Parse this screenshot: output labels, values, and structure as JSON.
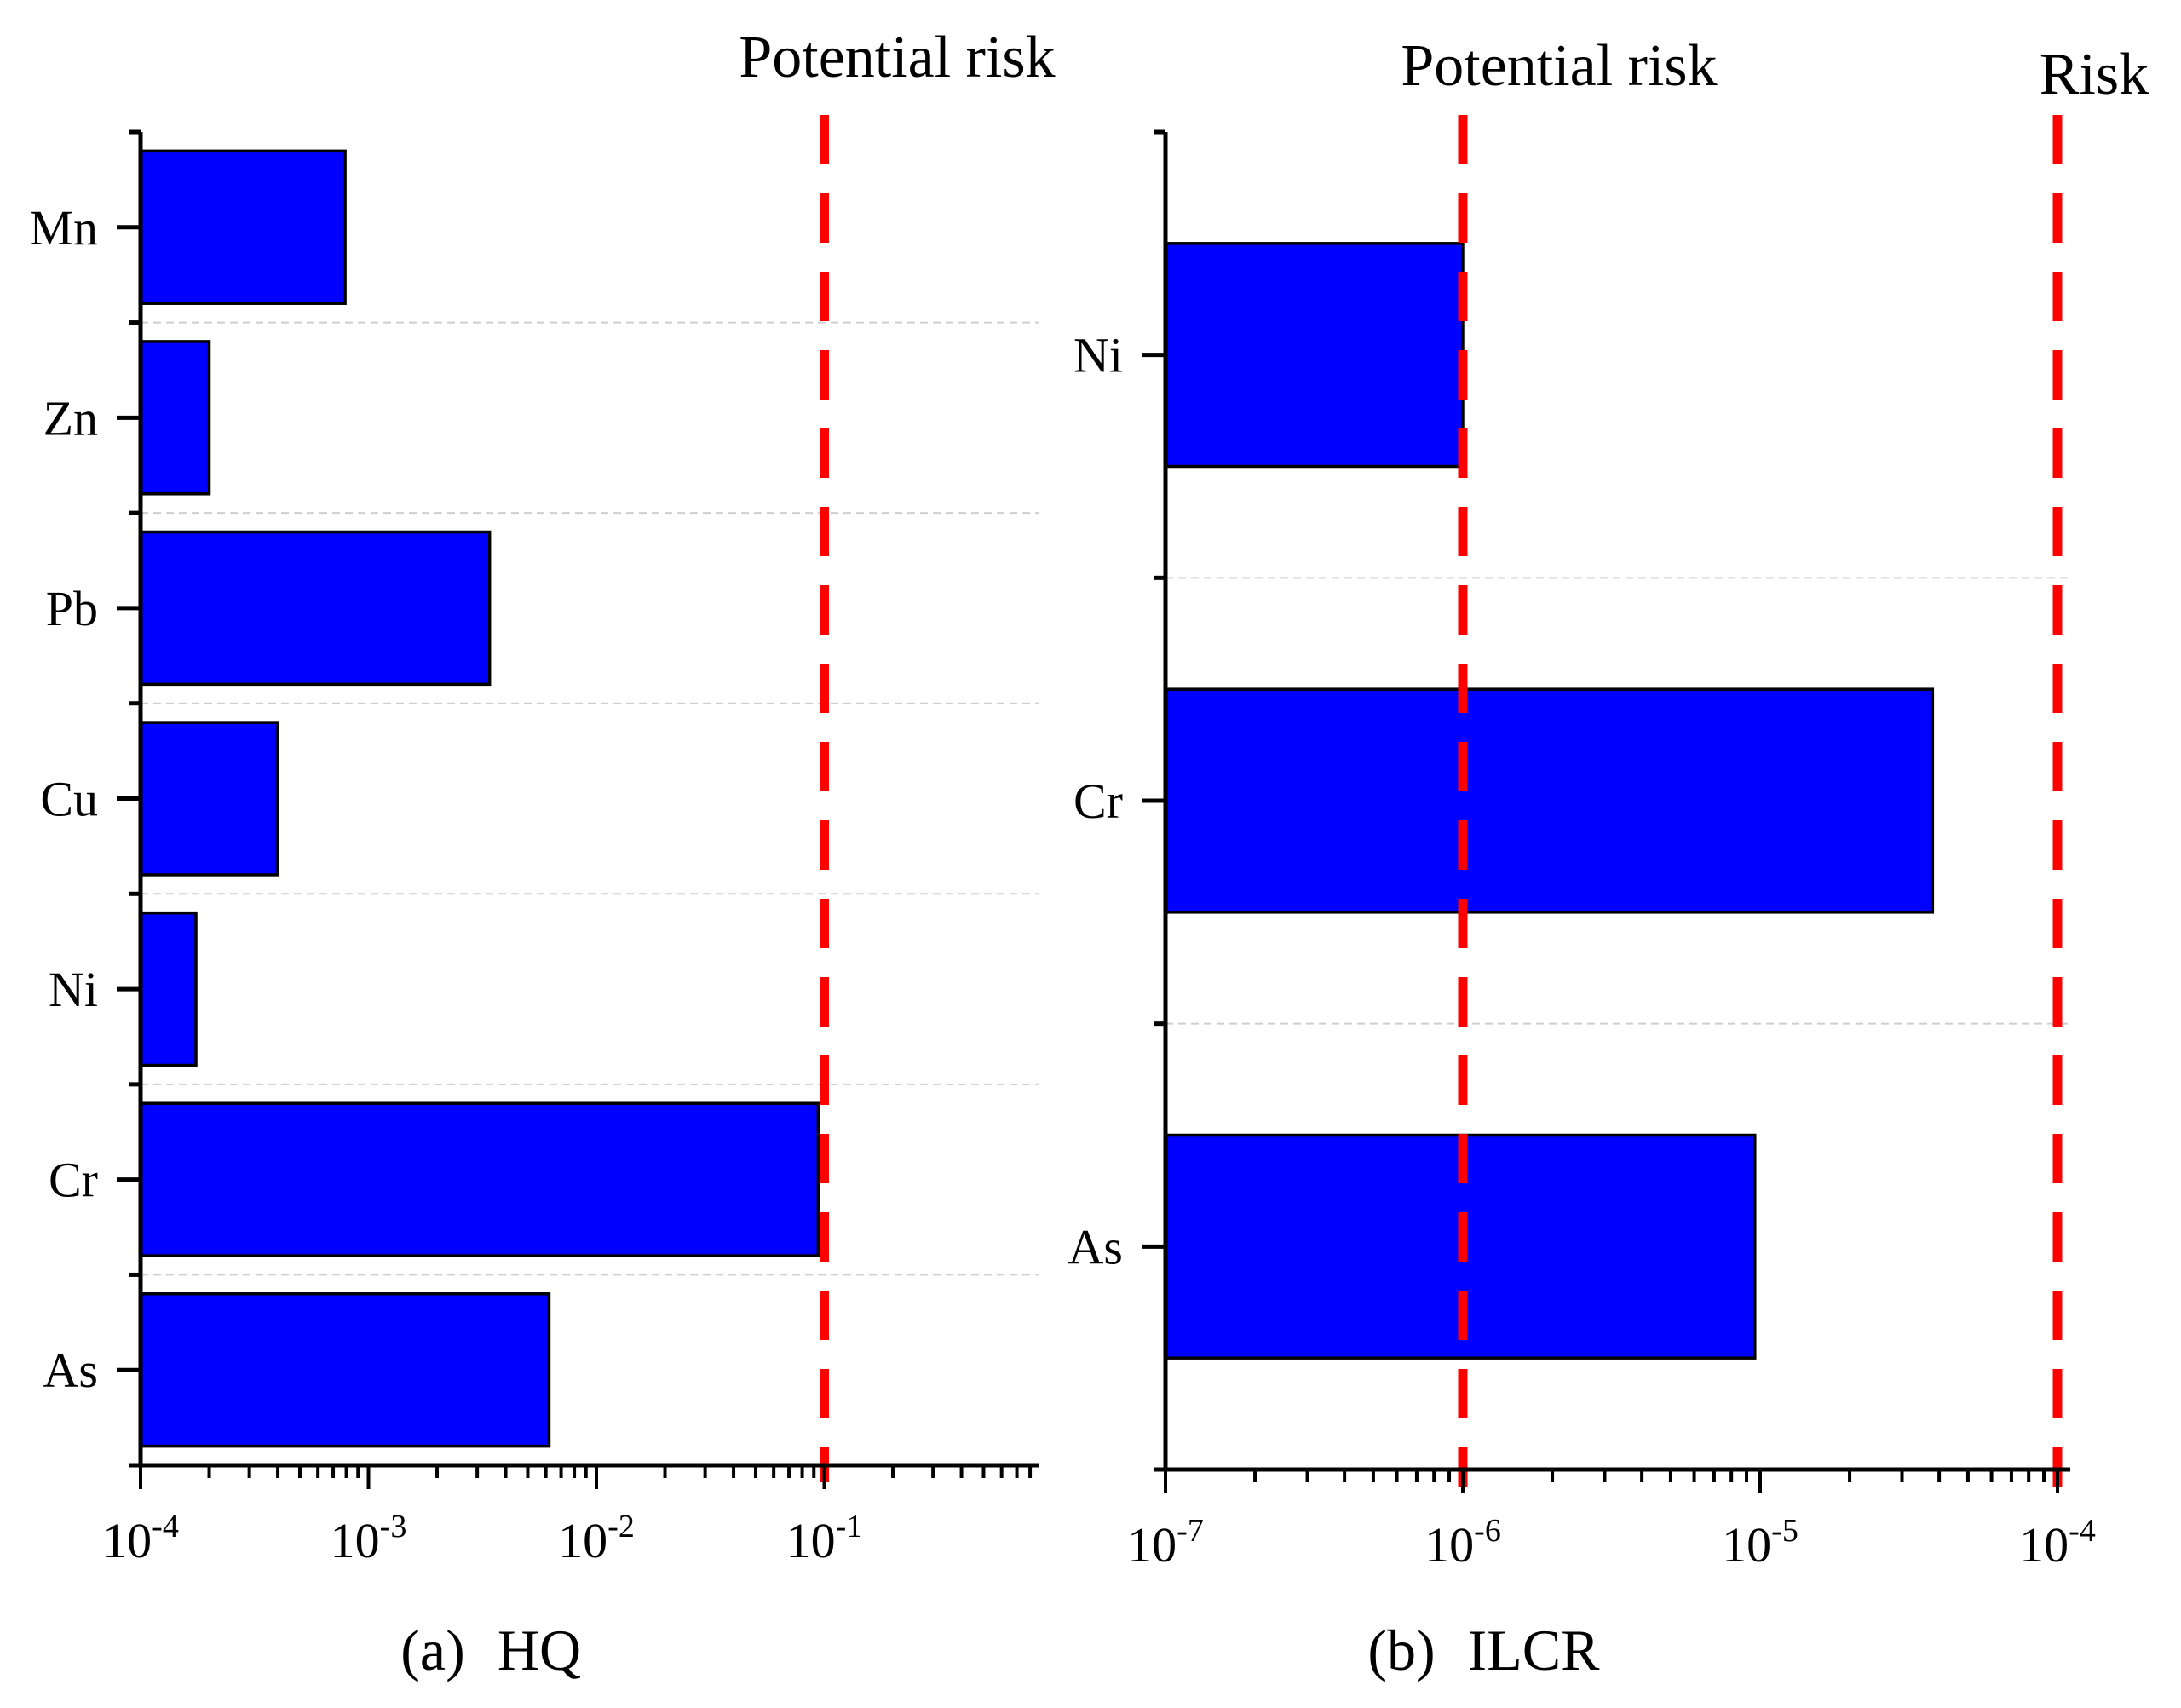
{
  "chart_data": [
    {
      "type": "bar",
      "orientation": "horizontal",
      "panel_label": "(a)",
      "xlabel": "HQ",
      "x_scale": "log",
      "xlim": [
        0.0001,
        0.8
      ],
      "categories": [
        "Mn",
        "Zn",
        "Pb",
        "Cu",
        "Ni",
        "Cr",
        "As"
      ],
      "values": [
        0.00079,
        0.0002,
        0.0034,
        0.0004,
        0.000175,
        0.094,
        0.0062
      ],
      "x_ticks": [
        {
          "value": 0.0001,
          "base": "10",
          "exp": "-4"
        },
        {
          "value": 0.001,
          "base": "10",
          "exp": "-3"
        },
        {
          "value": 0.01,
          "base": "10",
          "exp": "-2"
        },
        {
          "value": 0.1,
          "base": "10",
          "exp": "-1"
        }
      ],
      "reference_lines": [
        {
          "value": 0.1,
          "label": "Potential risk",
          "color": "#ff0000"
        }
      ],
      "bar_color": "#0000ff",
      "grid": "horizontal-dashed"
    },
    {
      "type": "bar",
      "orientation": "horizontal",
      "panel_label": "(b)",
      "xlabel": "ILCR",
      "x_scale": "log",
      "xlim": [
        1e-07,
        0.0001
      ],
      "categories": [
        "Ni",
        "Cr",
        "As"
      ],
      "values": [
        1e-06,
        3.8e-05,
        9.6e-06
      ],
      "x_ticks": [
        {
          "value": 1e-07,
          "base": "10",
          "exp": "-7"
        },
        {
          "value": 1e-06,
          "base": "10",
          "exp": "-6"
        },
        {
          "value": 1e-05,
          "base": "10",
          "exp": "-5"
        },
        {
          "value": 0.0001,
          "base": "10",
          "exp": "-4"
        }
      ],
      "reference_lines": [
        {
          "value": 1e-06,
          "label": "Potential risk",
          "color": "#ff0000"
        },
        {
          "value": 0.0001,
          "label": "Risk",
          "color": "#ff0000"
        }
      ],
      "bar_color": "#0000ff",
      "grid": "horizontal-dashed"
    }
  ]
}
